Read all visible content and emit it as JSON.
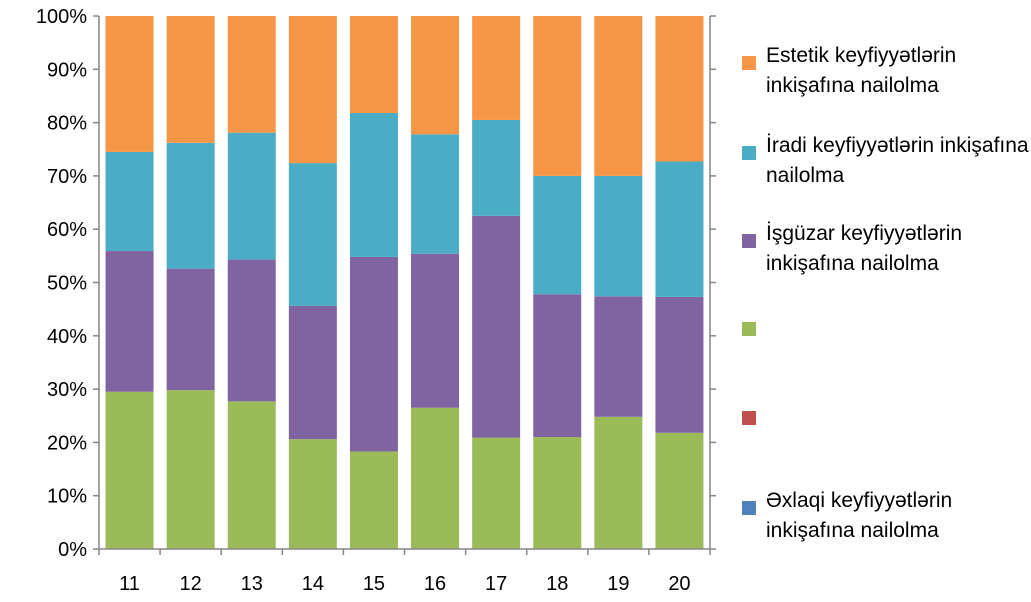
{
  "chart_data": {
    "type": "bar",
    "stacked": true,
    "percent": true,
    "categories": [
      "11",
      "12",
      "13",
      "14",
      "15",
      "16",
      "17",
      "18",
      "19",
      "20"
    ],
    "y_ticks": [
      "0%",
      "10%",
      "20%",
      "30%",
      "40%",
      "50%",
      "60%",
      "70%",
      "80%",
      "90%",
      "100%"
    ],
    "ylim": [
      0,
      100
    ],
    "grid": false,
    "legend_position": "right",
    "series": [
      {
        "name": "Əxlaqi keyfiyyətlərin inkişafına nailolma",
        "color": "#4F81BD",
        "values": [
          0,
          0,
          0,
          0,
          0,
          0,
          0,
          0,
          0,
          0
        ]
      },
      {
        "name": "",
        "color": "#C0504D",
        "values": [
          0,
          0,
          0,
          0,
          0,
          0,
          0,
          0,
          0,
          0
        ]
      },
      {
        "name": "",
        "color": "#9BBB59",
        "values": [
          29.5,
          29.8,
          27.7,
          20.6,
          18.3,
          26.5,
          20.9,
          21.0,
          24.8,
          21.8
        ]
      },
      {
        "name": "İşgüzar keyfiyyətlərin inkişafına nailolma",
        "color": "#8064A2",
        "values": [
          26.4,
          22.8,
          26.6,
          25.0,
          36.5,
          28.9,
          41.6,
          26.8,
          22.6,
          25.5
        ]
      },
      {
        "name": "İradi keyfiyyətlərin inkişafına nailolma",
        "color": "#4BACC6",
        "values": [
          18.6,
          23.6,
          23.8,
          26.8,
          27.0,
          22.4,
          18.0,
          22.2,
          22.6,
          25.4
        ]
      },
      {
        "name": "Estetik keyfiyyətlərin inkişafına nailolma",
        "color": "#F79646",
        "values": [
          25.5,
          23.8,
          21.9,
          27.6,
          18.2,
          22.2,
          19.5,
          30.0,
          30.0,
          27.3
        ]
      }
    ],
    "legend_order": [
      5,
      4,
      3,
      2,
      1,
      0
    ]
  }
}
